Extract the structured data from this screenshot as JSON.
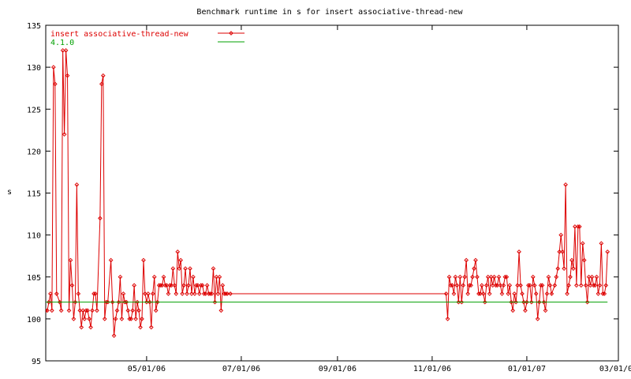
{
  "chart_data": {
    "type": "line",
    "title": "Benchmark runtime in s for insert associative-thread-new",
    "xlabel": "",
    "ylabel": "s",
    "xlim": [
      "2006-02-25",
      "2007-03-01"
    ],
    "ylim": [
      95,
      135
    ],
    "x_ticks": [
      {
        "date": "2006-05-01",
        "label": "05/01/06"
      },
      {
        "date": "2006-07-01",
        "label": "07/01/06"
      },
      {
        "date": "2006-09-01",
        "label": "09/01/06"
      },
      {
        "date": "2006-11-01",
        "label": "11/01/06"
      },
      {
        "date": "2007-01-01",
        "label": "01/01/07"
      },
      {
        "date": "2007-03-01",
        "label": "03/01/07"
      }
    ],
    "y_ticks": [
      95,
      100,
      105,
      110,
      115,
      120,
      125,
      130,
      135
    ],
    "legend_position": "top-left",
    "grid": false,
    "series": [
      {
        "name": "insert associative-thread-new",
        "color": "#dd0000",
        "marker": "diamond",
        "points": [
          [
            "2006-02-25",
            101
          ],
          [
            "2006-02-26",
            101
          ],
          [
            "2006-02-27",
            102
          ],
          [
            "2006-02-28",
            103
          ],
          [
            "2006-03-01",
            101
          ],
          [
            "2006-03-02",
            130
          ],
          [
            "2006-03-03",
            128
          ],
          [
            "2006-03-04",
            103
          ],
          [
            "2006-03-06",
            102
          ],
          [
            "2006-03-07",
            101
          ],
          [
            "2006-03-08",
            132
          ],
          [
            "2006-03-09",
            122
          ],
          [
            "2006-03-10",
            132
          ],
          [
            "2006-03-11",
            129
          ],
          [
            "2006-03-12",
            101
          ],
          [
            "2006-03-13",
            107
          ],
          [
            "2006-03-14",
            104
          ],
          [
            "2006-03-15",
            100
          ],
          [
            "2006-03-16",
            102
          ],
          [
            "2006-03-17",
            116
          ],
          [
            "2006-03-18",
            103
          ],
          [
            "2006-03-19",
            101
          ],
          [
            "2006-03-20",
            99
          ],
          [
            "2006-03-21",
            101
          ],
          [
            "2006-03-22",
            100
          ],
          [
            "2006-03-23",
            101
          ],
          [
            "2006-03-24",
            101
          ],
          [
            "2006-03-25",
            100
          ],
          [
            "2006-03-26",
            99
          ],
          [
            "2006-03-27",
            101
          ],
          [
            "2006-03-28",
            103
          ],
          [
            "2006-03-29",
            103
          ],
          [
            "2006-03-30",
            101
          ],
          [
            "2006-04-01",
            112
          ],
          [
            "2006-04-02",
            128
          ],
          [
            "2006-04-03",
            129
          ],
          [
            "2006-04-04",
            100
          ],
          [
            "2006-04-05",
            102
          ],
          [
            "2006-04-06",
            102
          ],
          [
            "2006-04-08",
            107
          ],
          [
            "2006-04-09",
            102
          ],
          [
            "2006-04-10",
            98
          ],
          [
            "2006-04-11",
            100
          ],
          [
            "2006-04-12",
            101
          ],
          [
            "2006-04-13",
            102
          ],
          [
            "2006-04-14",
            105
          ],
          [
            "2006-04-15",
            100
          ],
          [
            "2006-04-16",
            103
          ],
          [
            "2006-04-17",
            102
          ],
          [
            "2006-04-18",
            102
          ],
          [
            "2006-04-19",
            101
          ],
          [
            "2006-04-20",
            100
          ],
          [
            "2006-04-21",
            100
          ],
          [
            "2006-04-22",
            101
          ],
          [
            "2006-04-23",
            104
          ],
          [
            "2006-04-24",
            100
          ],
          [
            "2006-04-25",
            102
          ],
          [
            "2006-04-26",
            101
          ],
          [
            "2006-04-27",
            99
          ],
          [
            "2006-04-28",
            100
          ],
          [
            "2006-04-29",
            107
          ],
          [
            "2006-04-30",
            103
          ],
          [
            "2006-05-01",
            102
          ],
          [
            "2006-05-02",
            103
          ],
          [
            "2006-05-03",
            102
          ],
          [
            "2006-05-04",
            99
          ],
          [
            "2006-05-05",
            103
          ],
          [
            "2006-05-06",
            105
          ],
          [
            "2006-05-07",
            101
          ],
          [
            "2006-05-08",
            102
          ],
          [
            "2006-05-09",
            104
          ],
          [
            "2006-05-10",
            104
          ],
          [
            "2006-05-11",
            104
          ],
          [
            "2006-05-12",
            105
          ],
          [
            "2006-05-13",
            104
          ],
          [
            "2006-05-14",
            104
          ],
          [
            "2006-05-15",
            103
          ],
          [
            "2006-05-16",
            104
          ],
          [
            "2006-05-17",
            104
          ],
          [
            "2006-05-18",
            106
          ],
          [
            "2006-05-19",
            104
          ],
          [
            "2006-05-20",
            103
          ],
          [
            "2006-05-21",
            108
          ],
          [
            "2006-05-22",
            106
          ],
          [
            "2006-05-23",
            107
          ],
          [
            "2006-05-24",
            103
          ],
          [
            "2006-05-25",
            104
          ],
          [
            "2006-05-26",
            106
          ],
          [
            "2006-05-27",
            103
          ],
          [
            "2006-05-28",
            104
          ],
          [
            "2006-05-29",
            106
          ],
          [
            "2006-05-30",
            103
          ],
          [
            "2006-05-31",
            105
          ],
          [
            "2006-06-01",
            103
          ],
          [
            "2006-06-02",
            104
          ],
          [
            "2006-06-03",
            104
          ],
          [
            "2006-06-04",
            103
          ],
          [
            "2006-06-05",
            104
          ],
          [
            "2006-06-06",
            104
          ],
          [
            "2006-06-07",
            103
          ],
          [
            "2006-06-08",
            103
          ],
          [
            "2006-06-09",
            104
          ],
          [
            "2006-06-10",
            103
          ],
          [
            "2006-06-11",
            103
          ],
          [
            "2006-06-12",
            103
          ],
          [
            "2006-06-13",
            106
          ],
          [
            "2006-06-14",
            102
          ],
          [
            "2006-06-15",
            105
          ],
          [
            "2006-06-16",
            103
          ],
          [
            "2006-06-17",
            105
          ],
          [
            "2006-06-18",
            101
          ],
          [
            "2006-06-19",
            104
          ],
          [
            "2006-06-20",
            103
          ],
          [
            "2006-06-21",
            103
          ],
          [
            "2006-06-22",
            103
          ],
          [
            "2006-06-24",
            103
          ],
          [
            "2006-11-10",
            103
          ],
          [
            "2006-11-11",
            100
          ],
          [
            "2006-11-12",
            105
          ],
          [
            "2006-11-13",
            104
          ],
          [
            "2006-11-14",
            104
          ],
          [
            "2006-11-15",
            103
          ],
          [
            "2006-11-16",
            105
          ],
          [
            "2006-11-17",
            104
          ],
          [
            "2006-11-18",
            102
          ],
          [
            "2006-11-19",
            105
          ],
          [
            "2006-11-20",
            102
          ],
          [
            "2006-11-21",
            104
          ],
          [
            "2006-11-22",
            105
          ],
          [
            "2006-11-23",
            107
          ],
          [
            "2006-11-24",
            103
          ],
          [
            "2006-11-25",
            104
          ],
          [
            "2006-11-26",
            104
          ],
          [
            "2006-11-27",
            105
          ],
          [
            "2006-11-28",
            106
          ],
          [
            "2006-11-29",
            107
          ],
          [
            "2006-11-30",
            105
          ],
          [
            "2006-12-01",
            103
          ],
          [
            "2006-12-02",
            103
          ],
          [
            "2006-12-03",
            104
          ],
          [
            "2006-12-04",
            103
          ],
          [
            "2006-12-05",
            102
          ],
          [
            "2006-12-06",
            104
          ],
          [
            "2006-12-07",
            105
          ],
          [
            "2006-12-08",
            103
          ],
          [
            "2006-12-09",
            105
          ],
          [
            "2006-12-10",
            104
          ],
          [
            "2006-12-11",
            105
          ],
          [
            "2006-12-12",
            104
          ],
          [
            "2006-12-13",
            104
          ],
          [
            "2006-12-14",
            105
          ],
          [
            "2006-12-15",
            104
          ],
          [
            "2006-12-16",
            103
          ],
          [
            "2006-12-17",
            104
          ],
          [
            "2006-12-18",
            105
          ],
          [
            "2006-12-19",
            105
          ],
          [
            "2006-12-20",
            103
          ],
          [
            "2006-12-21",
            104
          ],
          [
            "2006-12-22",
            102
          ],
          [
            "2006-12-23",
            101
          ],
          [
            "2006-12-24",
            103
          ],
          [
            "2006-12-25",
            102
          ],
          [
            "2006-12-26",
            104
          ],
          [
            "2006-12-27",
            108
          ],
          [
            "2006-12-28",
            104
          ],
          [
            "2006-12-29",
            103
          ],
          [
            "2006-12-30",
            102
          ],
          [
            "2006-12-31",
            101
          ],
          [
            "2007-01-01",
            102
          ],
          [
            "2007-01-02",
            104
          ],
          [
            "2007-01-03",
            104
          ],
          [
            "2007-01-04",
            102
          ],
          [
            "2007-01-05",
            105
          ],
          [
            "2007-01-06",
            104
          ],
          [
            "2007-01-07",
            103
          ],
          [
            "2007-01-08",
            100
          ],
          [
            "2007-01-09",
            102
          ],
          [
            "2007-01-10",
            104
          ],
          [
            "2007-01-11",
            104
          ],
          [
            "2007-01-12",
            102
          ],
          [
            "2007-01-13",
            101
          ],
          [
            "2007-01-14",
            103
          ],
          [
            "2007-01-15",
            105
          ],
          [
            "2007-01-16",
            104
          ],
          [
            "2007-01-17",
            103
          ],
          [
            "2007-01-19",
            104
          ],
          [
            "2007-01-20",
            105
          ],
          [
            "2007-01-21",
            106
          ],
          [
            "2007-01-22",
            108
          ],
          [
            "2007-01-23",
            110
          ],
          [
            "2007-01-24",
            108
          ],
          [
            "2007-01-25",
            106
          ],
          [
            "2007-01-26",
            116
          ],
          [
            "2007-01-27",
            103
          ],
          [
            "2007-01-28",
            104
          ],
          [
            "2007-01-29",
            105
          ],
          [
            "2007-01-30",
            107
          ],
          [
            "2007-01-31",
            106
          ],
          [
            "2007-02-01",
            111
          ],
          [
            "2007-02-02",
            104
          ],
          [
            "2007-02-03",
            111
          ],
          [
            "2007-02-04",
            111
          ],
          [
            "2007-02-05",
            104
          ],
          [
            "2007-02-06",
            109
          ],
          [
            "2007-02-07",
            107
          ],
          [
            "2007-02-08",
            104
          ],
          [
            "2007-02-09",
            102
          ],
          [
            "2007-02-10",
            105
          ],
          [
            "2007-02-11",
            104
          ],
          [
            "2007-02-12",
            105
          ],
          [
            "2007-02-13",
            104
          ],
          [
            "2007-02-14",
            104
          ],
          [
            "2007-02-15",
            105
          ],
          [
            "2007-02-16",
            103
          ],
          [
            "2007-02-17",
            104
          ],
          [
            "2007-02-18",
            109
          ],
          [
            "2007-02-19",
            103
          ],
          [
            "2007-02-20",
            103
          ],
          [
            "2007-02-21",
            104
          ],
          [
            "2007-02-22",
            108
          ]
        ]
      },
      {
        "name": "4.1.0",
        "color": "#00a000",
        "marker": "none",
        "points": [
          [
            "2006-02-25",
            102
          ],
          [
            "2007-02-22",
            102
          ]
        ]
      }
    ]
  }
}
